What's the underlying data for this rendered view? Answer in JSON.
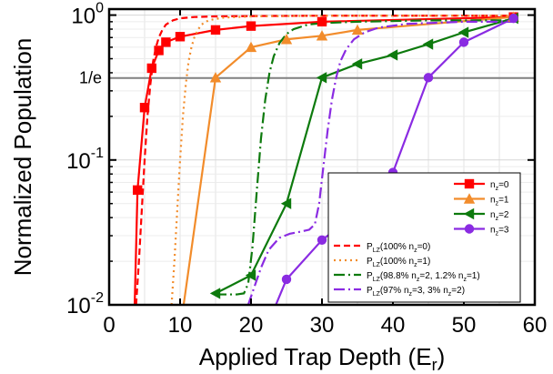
{
  "chart_data": {
    "type": "line",
    "xlabel": "Applied Trap Depth (E",
    "xlabel_sub": "r",
    "xlabel_close": ")",
    "ylabel": "Normalized Population",
    "xlim": [
      0,
      60
    ],
    "ylim": [
      0.01,
      1.1
    ],
    "yscale": "log",
    "grid": true,
    "legend_position": "bottom-right",
    "x_ticks": [
      0,
      10,
      20,
      30,
      40,
      50,
      60
    ],
    "y_ticks": [
      {
        "value": 0.01,
        "base": "10",
        "exp": "-2"
      },
      {
        "value": 0.1,
        "base": "10",
        "exp": "-1"
      },
      {
        "value": 1,
        "base": "10",
        "exp": "0"
      }
    ],
    "annotations": [
      {
        "text": "1/e",
        "y": 0.3679,
        "line_color": "#808080"
      }
    ],
    "series": [
      {
        "name_main": "n",
        "name_sub": "z",
        "name_rest": "=0",
        "kind": "data",
        "color": "#ff0000",
        "marker": "square",
        "x": [
          3.6,
          4,
          5,
          6,
          7,
          8,
          10,
          15,
          20,
          30,
          57
        ],
        "y": [
          0.01,
          0.062,
          0.23,
          0.43,
          0.57,
          0.65,
          0.71,
          0.79,
          0.84,
          0.9,
          0.97
        ]
      },
      {
        "name_main": "n",
        "name_sub": "z",
        "name_rest": "=1",
        "kind": "data",
        "color": "#f28c2b",
        "marker": "triangle-up",
        "x": [
          10.5,
          15,
          20,
          25,
          30,
          35,
          57
        ],
        "y": [
          0.01,
          0.37,
          0.6,
          0.68,
          0.72,
          0.79,
          0.97
        ]
      },
      {
        "name_main": "n",
        "name_sub": "z",
        "name_rest": "=2",
        "kind": "data",
        "color": "#0d7a0d",
        "marker": "triangle-left",
        "x": [
          15,
          20,
          25,
          30,
          35,
          40,
          45,
          50,
          57
        ],
        "y": [
          0.012,
          0.016,
          0.05,
          0.37,
          0.46,
          0.53,
          0.63,
          0.76,
          0.95
        ]
      },
      {
        "name_main": "n",
        "name_sub": "z",
        "name_rest": "=3",
        "kind": "data",
        "color": "#8a2be2",
        "marker": "circle",
        "x": [
          23.5,
          25,
          30,
          35,
          40,
          45,
          50,
          57
        ],
        "y": [
          0.01,
          0.015,
          0.028,
          0.043,
          0.082,
          0.37,
          0.65,
          0.95
        ]
      },
      {
        "name_main": "P",
        "name_sub": "LZ",
        "name_rest": "(100% n",
        "name_sub2": "z",
        "name_end": "=0)",
        "kind": "model",
        "color": "#ff0000",
        "dash": "7,4",
        "x": [
          3.8,
          4.2,
          4.6,
          5.0,
          5.4,
          5.8,
          6.2,
          6.6,
          7.0,
          7.5,
          8.0,
          9.0,
          10,
          12,
          15,
          20,
          30,
          57
        ],
        "y": [
          0.01,
          0.02,
          0.045,
          0.1,
          0.2,
          0.33,
          0.48,
          0.6,
          0.7,
          0.79,
          0.86,
          0.92,
          0.95,
          0.97,
          0.98,
          0.985,
          0.99,
          0.99
        ]
      },
      {
        "name_main": "P",
        "name_sub": "LZ",
        "name_rest": "(100% n",
        "name_sub2": "z",
        "name_end": "=1)",
        "kind": "model",
        "color": "#f28c2b",
        "dash": "2,4",
        "x": [
          8.8,
          9.2,
          9.6,
          10.0,
          10.4,
          10.8,
          11.2,
          11.6,
          12.0,
          12.5,
          13,
          14,
          16,
          20,
          30,
          57
        ],
        "y": [
          0.01,
          0.02,
          0.045,
          0.1,
          0.2,
          0.33,
          0.48,
          0.6,
          0.7,
          0.79,
          0.86,
          0.92,
          0.96,
          0.98,
          0.99,
          0.99
        ]
      },
      {
        "name_main": "P",
        "name_sub": "LZ",
        "name_rest": "(98.8% n",
        "name_sub2": "z",
        "name_rest2": "=2, 1.2% n",
        "name_sub3": "z",
        "name_end": "=1)",
        "kind": "model",
        "color": "#0d7a0d",
        "dash": "12,4,2,4",
        "x": [
          15,
          18,
          19,
          19.6,
          20.2,
          20.8,
          21.4,
          22,
          22.6,
          23.2,
          24,
          25,
          26,
          28,
          30,
          35,
          45,
          57
        ],
        "y": [
          0.0118,
          0.0118,
          0.012,
          0.014,
          0.025,
          0.06,
          0.14,
          0.26,
          0.4,
          0.52,
          0.64,
          0.74,
          0.8,
          0.86,
          0.88,
          0.9,
          0.92,
          0.92
        ]
      },
      {
        "name_main": "P",
        "name_sub": "LZ",
        "name_rest": "(97% n",
        "name_sub2": "z",
        "name_rest2": "=3, 3% n",
        "name_sub3": "z",
        "name_end": "=2)",
        "kind": "model",
        "color": "#8a2be2",
        "dash": "12,4,2,4",
        "x": [
          19.6,
          20.4,
          21.4,
          22.5,
          24,
          25.5,
          27,
          28.2,
          29.0,
          29.6,
          30.2,
          30.8,
          31.4,
          32.0,
          32.6,
          33.4,
          34.5,
          36,
          38,
          42,
          50,
          57
        ],
        "y": [
          0.01,
          0.013,
          0.018,
          0.024,
          0.029,
          0.031,
          0.032,
          0.033,
          0.036,
          0.05,
          0.09,
          0.16,
          0.26,
          0.37,
          0.48,
          0.58,
          0.68,
          0.76,
          0.82,
          0.87,
          0.9,
          0.9
        ]
      }
    ]
  }
}
